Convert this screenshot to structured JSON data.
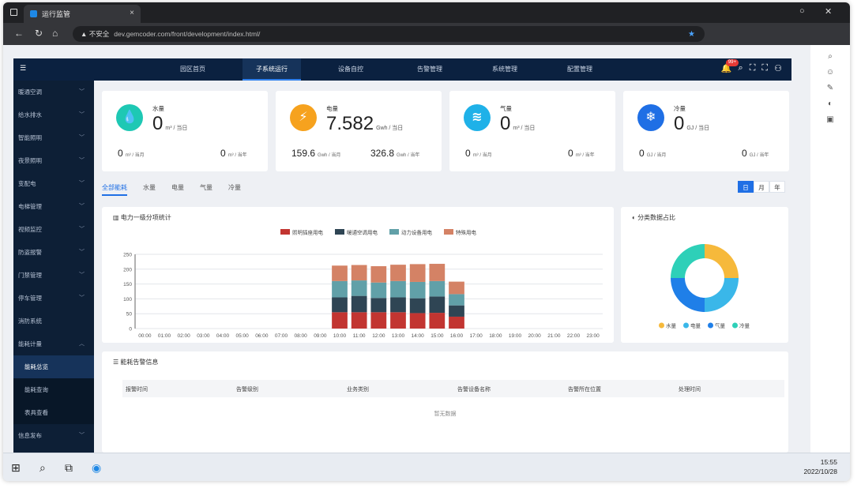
{
  "browser": {
    "tab_title": "运行监管",
    "tab_close": "×",
    "url_security": "▲ 不安全",
    "url": "dev.gemcoder.com/front/development/index.html/",
    "window_min": "○",
    "window_close": "✕"
  },
  "app": {
    "logo": "☰",
    "nav": [
      "园区首页",
      "子系统运行",
      "设备自控",
      "告警管理",
      "系统管理",
      "配置管理"
    ],
    "active_nav": "子系统运行",
    "notif_count": "99+",
    "sidebar": [
      {
        "label": "暖通空调",
        "chev": "﹀"
      },
      {
        "label": "给水排水",
        "chev": "﹀"
      },
      {
        "label": "智能照明",
        "chev": "﹀"
      },
      {
        "label": "夜景照明",
        "chev": "﹀"
      },
      {
        "label": "变配电",
        "chev": "﹀"
      },
      {
        "label": "电梯管理",
        "chev": "﹀"
      },
      {
        "label": "视频监控",
        "chev": "﹀"
      },
      {
        "label": "防盗报警",
        "chev": "﹀"
      },
      {
        "label": "门禁管理",
        "chev": "﹀"
      },
      {
        "label": "停车管理",
        "chev": "﹀"
      },
      {
        "label": "消防系统",
        "chev": ""
      },
      {
        "label": "能耗计量",
        "chev": "︿"
      },
      {
        "label": "能耗总览",
        "chev": "",
        "sub": true,
        "active": true
      },
      {
        "label": "能耗查询",
        "chev": "",
        "sub": true
      },
      {
        "label": "表具查看",
        "chev": "",
        "sub": true
      },
      {
        "label": "信息发布",
        "chev": "﹀"
      }
    ]
  },
  "cards": [
    {
      "name": "水量",
      "value": "0",
      "unit": "m³ / 当日",
      "month": "0",
      "month_unit": "m³ / 当月",
      "year": "0",
      "year_unit": "m³ / 当年",
      "icon": "💧",
      "color": "#1ec8b4"
    },
    {
      "name": "电量",
      "value": "7.582",
      "unit": "Gwh / 当日",
      "month": "159.6",
      "month_unit": "Gwh / 当月",
      "year": "326.8",
      "year_unit": "Gwh / 当年",
      "icon": "⚡",
      "color": "#f6a21e"
    },
    {
      "name": "气量",
      "value": "0",
      "unit": "m³ / 当日",
      "month": "0",
      "month_unit": "m³ / 当月",
      "year": "0",
      "year_unit": "m³ / 当年",
      "icon": "≋",
      "color": "#1fb1e8"
    },
    {
      "name": "冷量",
      "value": "0",
      "unit": "GJ / 当日",
      "month": "0",
      "month_unit": "GJ / 当月",
      "year": "0",
      "year_unit": "GJ / 当年",
      "icon": "❄",
      "color": "#1f6fe5"
    }
  ],
  "filter_tabs": [
    "全部能耗",
    "水量",
    "电量",
    "气量",
    "冷量"
  ],
  "period": [
    "日",
    "月",
    "年"
  ],
  "bar_panel_title": "电力一级分项统计",
  "pie_panel_title": "分类数据占比",
  "alarm_panel_title": "能耗告警信息",
  "alarm_columns": [
    "报警时间",
    "告警级别",
    "业务类别",
    "告警设备名称",
    "告警所在位置",
    "处理时间"
  ],
  "alarm_empty": "暂无数据",
  "taskbar": {
    "time": "15:55",
    "date": "2022/10/28"
  },
  "chart_data": [
    {
      "type": "bar",
      "stacked": true,
      "title": "电力一级分项统计",
      "categories": [
        "00:00",
        "01:00",
        "02:00",
        "03:00",
        "04:00",
        "05:00",
        "06:00",
        "07:00",
        "08:00",
        "09:00",
        "10:00",
        "11:00",
        "12:00",
        "13:00",
        "14:00",
        "15:00",
        "16:00",
        "17:00",
        "18:00",
        "19:00",
        "20:00",
        "21:00",
        "22:00",
        "23:00"
      ],
      "ylim": [
        0,
        250
      ],
      "yticks": [
        0,
        50,
        100,
        150,
        200,
        250
      ],
      "series": [
        {
          "name": "照明插座用电",
          "color": "#c23531",
          "values": [
            0,
            0,
            0,
            0,
            0,
            0,
            0,
            0,
            0,
            0,
            55,
            55,
            55,
            55,
            52,
            53,
            40,
            0,
            0,
            0,
            0,
            0,
            0,
            0
          ]
        },
        {
          "name": "暖通空调用电",
          "color": "#2f4554",
          "values": [
            0,
            0,
            0,
            0,
            0,
            0,
            0,
            0,
            0,
            0,
            50,
            55,
            48,
            50,
            50,
            55,
            38,
            0,
            0,
            0,
            0,
            0,
            0,
            0
          ]
        },
        {
          "name": "动力设备用电",
          "color": "#61a0a8",
          "values": [
            0,
            0,
            0,
            0,
            0,
            0,
            0,
            0,
            0,
            0,
            55,
            52,
            52,
            55,
            55,
            52,
            38,
            0,
            0,
            0,
            0,
            0,
            0,
            0
          ]
        },
        {
          "name": "特殊用电",
          "color": "#d48265",
          "values": [
            0,
            0,
            0,
            0,
            0,
            0,
            0,
            0,
            0,
            0,
            52,
            52,
            55,
            55,
            60,
            58,
            42,
            0,
            0,
            0,
            0,
            0,
            0,
            0
          ]
        }
      ],
      "grid": true,
      "legend": "top-center"
    },
    {
      "type": "pie",
      "title": "分类数据占比",
      "donut": true,
      "series": [
        {
          "name": "水量",
          "value": 25,
          "color": "#f6b93b"
        },
        {
          "name": "电量",
          "value": 25,
          "color": "#3ab7e9"
        },
        {
          "name": "气量",
          "value": 25,
          "color": "#1f7fe8"
        },
        {
          "name": "冷量",
          "value": 25,
          "color": "#2ed0b8"
        }
      ],
      "legend": "bottom"
    }
  ]
}
